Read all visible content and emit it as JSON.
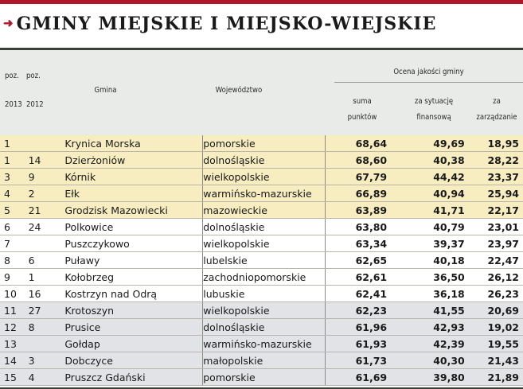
{
  "title": "GMINY MIEJSKIE I MIEJSKO-WIEJSKIE",
  "headers": {
    "poz_a": "poz.",
    "poz_b": "poz.",
    "year_a": "2013",
    "year_b": "2012",
    "gmina": "Gmina",
    "wojewodztwo": "Województwo",
    "ocena": "Ocena jakości gminy",
    "suma_1": "suma",
    "suma_2": "punktów",
    "fin_1": "za sytuację",
    "fin_2": "finansową",
    "zarz_1": "za",
    "zarz_2": "zarządzanie"
  },
  "rows": [
    {
      "poz2013": "1",
      "poz2012": "",
      "gmina": "Krynica Morska",
      "wojewodztwo": "pomorskie",
      "suma": "68,64",
      "finanse": "49,69",
      "zarzadzanie": "18,95",
      "band": "top"
    },
    {
      "poz2013": "1",
      "poz2012": "14",
      "gmina": "Dzierżoniów",
      "wojewodztwo": "dolnośląskie",
      "suma": "68,60",
      "finanse": "40,38",
      "zarzadzanie": "28,22",
      "band": "top"
    },
    {
      "poz2013": "3",
      "poz2012": "9",
      "gmina": "Kórnik",
      "wojewodztwo": "wielkopolskie",
      "suma": "67,79",
      "finanse": "44,42",
      "zarzadzanie": "23,37",
      "band": "top"
    },
    {
      "poz2013": "4",
      "poz2012": "2",
      "gmina": "Ełk",
      "wojewodztwo": "warmińsko-mazurskie",
      "suma": "66,89",
      "finanse": "40,94",
      "zarzadzanie": "25,94",
      "band": "top"
    },
    {
      "poz2013": "5",
      "poz2012": "21",
      "gmina": "Grodzisk Mazowiecki",
      "wojewodztwo": "mazowieckie",
      "suma": "63,89",
      "finanse": "41,71",
      "zarzadzanie": "22,17",
      "band": "top"
    },
    {
      "poz2013": "6",
      "poz2012": "24",
      "gmina": "Polkowice",
      "wojewodztwo": "dolnośląskie",
      "suma": "63,80",
      "finanse": "40,79",
      "zarzadzanie": "23,01",
      "band": "none"
    },
    {
      "poz2013": "7",
      "poz2012": "",
      "gmina": "Puszczykowo",
      "wojewodztwo": "wielkopolskie",
      "suma": "63,34",
      "finanse": "39,37",
      "zarzadzanie": "23,97",
      "band": "none"
    },
    {
      "poz2013": "8",
      "poz2012": "6",
      "gmina": "Puławy",
      "wojewodztwo": "lubelskie",
      "suma": "62,65",
      "finanse": "40,18",
      "zarzadzanie": "22,47",
      "band": "none"
    },
    {
      "poz2013": "9",
      "poz2012": "1",
      "gmina": "Kołobrzeg",
      "wojewodztwo": "zachodniopomorskie",
      "suma": "62,61",
      "finanse": "36,50",
      "zarzadzanie": "26,12",
      "band": "none"
    },
    {
      "poz2013": "10",
      "poz2012": "16",
      "gmina": "Kostrzyn nad Odrą",
      "wojewodztwo": "lubuskie",
      "suma": "62,41",
      "finanse": "36,18",
      "zarzadzanie": "26,23",
      "band": "none"
    },
    {
      "poz2013": "11",
      "poz2012": "27",
      "gmina": "Krotoszyn",
      "wojewodztwo": "wielkopolskie",
      "suma": "62,23",
      "finanse": "41,55",
      "zarzadzanie": "20,69",
      "band": "bottom"
    },
    {
      "poz2013": "12",
      "poz2012": "8",
      "gmina": "Prusice",
      "wojewodztwo": "dolnośląskie",
      "suma": "61,96",
      "finanse": "42,93",
      "zarzadzanie": "19,02",
      "band": "bottom"
    },
    {
      "poz2013": "13",
      "poz2012": "",
      "gmina": "Gołdap",
      "wojewodztwo": "warmińsko-mazurskie",
      "suma": "61,93",
      "finanse": "42,39",
      "zarzadzanie": "19,55",
      "band": "bottom"
    },
    {
      "poz2013": "14",
      "poz2012": "3",
      "gmina": "Dobczyce",
      "wojewodztwo": "małopolskie",
      "suma": "61,73",
      "finanse": "40,30",
      "zarzadzanie": "21,43",
      "band": "bottom"
    },
    {
      "poz2013": "15",
      "poz2012": "4",
      "gmina": "Pruszcz Gdański",
      "wojewodztwo": "pomorskie",
      "suma": "61,69",
      "finanse": "39,80",
      "zarzadzanie": "21,89",
      "band": "bottom"
    }
  ],
  "colors": {
    "accent": "#b0152a",
    "band_top": "#f7edc1",
    "band_bottom": "#e2e3e6",
    "header_bg": "#e9ebe8"
  }
}
